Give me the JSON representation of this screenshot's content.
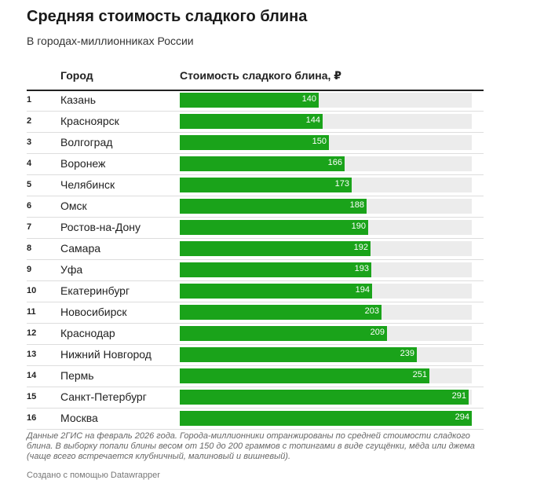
{
  "title": "Средняя стоимость сладкого блина",
  "subtitle": "В городах-миллионниках России",
  "columns": {
    "city": "Город",
    "value": "Стоимость сладкого блина, ₽"
  },
  "notes": "Данные 2ГИС на февраль 2026 года. Города-миллионники отранжированы по средней стоимости сладкого блина. В выборку попали блины весом от 150 до 200 граммов с топингами в виде сгущёнки, мёда или джема (чаще всего встречается клубничный, малиновый и вишневый).",
  "credit": "Создано с помощью Datawrapper",
  "colors": {
    "bar": "#1aa31a",
    "track": "#ececec"
  },
  "chart_data": {
    "type": "bar",
    "title": "Средняя стоимость сладкого блина",
    "subtitle": "В городах-миллионниках России",
    "xlabel": "Стоимость сладкого блина, ₽",
    "ylabel": "Город",
    "xlim": [
      0,
      294
    ],
    "ranks": [
      "1",
      "2",
      "3",
      "4",
      "5",
      "6",
      "7",
      "8",
      "9",
      "10",
      "11",
      "12",
      "13",
      "14",
      "15",
      "16"
    ],
    "categories": [
      "Казань",
      "Красноярск",
      "Волгоград",
      "Воронеж",
      "Челябинск",
      "Омск",
      "Ростов-на-Дону",
      "Самара",
      "Уфа",
      "Екатеринбург",
      "Новосибирск",
      "Краснодар",
      "Нижний Новгород",
      "Пермь",
      "Санкт-Петербург",
      "Москва"
    ],
    "values": [
      140,
      144,
      150,
      166,
      173,
      188,
      190,
      192,
      193,
      194,
      203,
      209,
      239,
      251,
      291,
      294
    ]
  }
}
